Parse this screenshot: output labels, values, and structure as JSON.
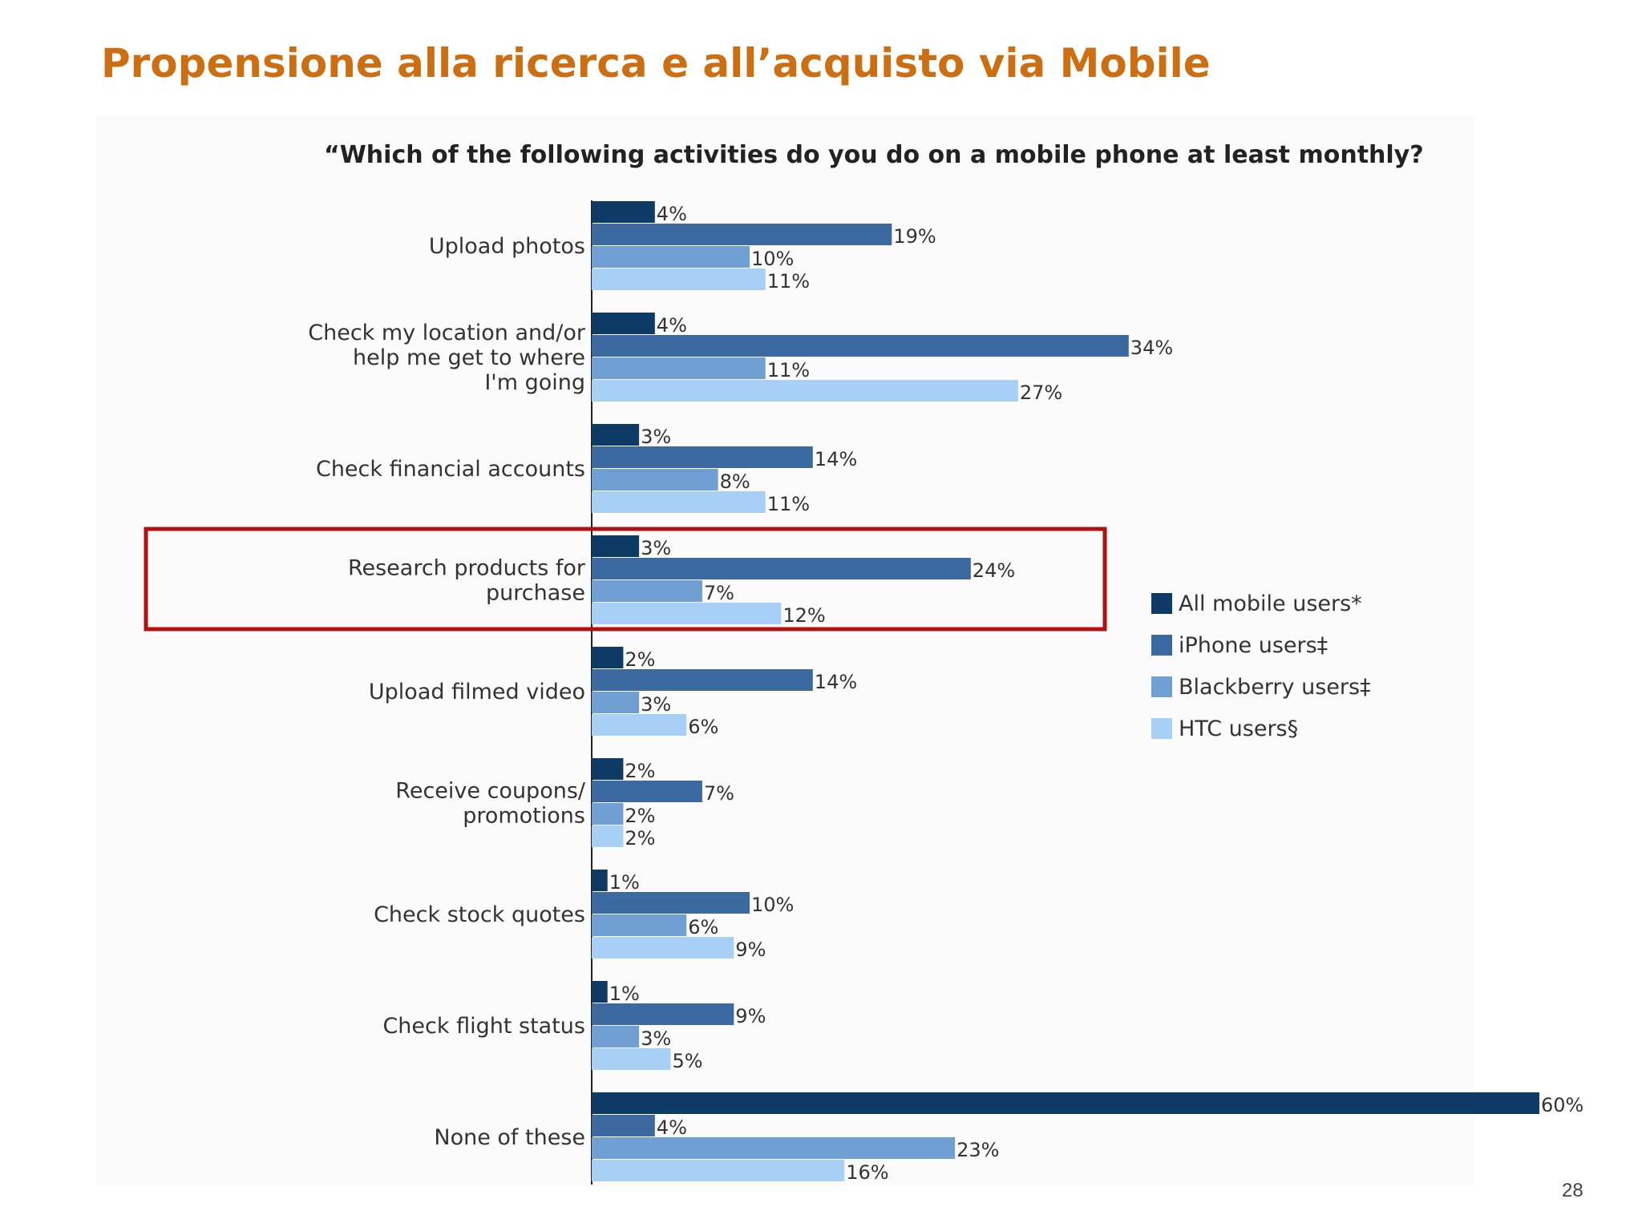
{
  "slide": {
    "title": "Propensione alla ricerca e all’acquisto via Mobile",
    "page_number": "28",
    "title_color": "#cc6f12",
    "highlight_color": "#b01212"
  },
  "chart_data": {
    "type": "bar",
    "orientation": "horizontal",
    "title": "“Which of the following activities do you do on a mobile phone at least monthly?",
    "categories": [
      [
        "Upload photos"
      ],
      [
        "Check my location and/or",
        "help me get to where",
        "I'm going"
      ],
      [
        "Check financial accounts"
      ],
      [
        "Research products for",
        "purchase"
      ],
      [
        "Upload filmed video"
      ],
      [
        "Receive coupons/",
        "promotions"
      ],
      [
        "Check stock quotes"
      ],
      [
        "Check flight status"
      ],
      [
        "None of these"
      ]
    ],
    "series": [
      {
        "name": "All mobile users*",
        "color": "#0e3a66",
        "values": [
          4,
          4,
          3,
          3,
          2,
          2,
          1,
          1,
          60
        ],
        "labels": [
          "4%",
          "4%",
          "3%",
          "3%",
          "2%",
          "2%",
          "1%",
          "1%",
          "60%"
        ]
      },
      {
        "name": "iPhone users‡",
        "color": "#3b69a0",
        "values": [
          19,
          34,
          14,
          24,
          14,
          7,
          10,
          9,
          4
        ],
        "labels": [
          "19%",
          "34%",
          "14%",
          "24%",
          "14%",
          "7%",
          "10%",
          "9%",
          "4%"
        ]
      },
      {
        "name": "Blackberry users‡",
        "color": "#6f9fd3",
        "values": [
          10,
          11,
          8,
          7,
          3,
          2,
          6,
          3,
          23
        ],
        "labels": [
          "10%",
          "11%",
          "8%",
          "7%",
          "3%",
          "2%",
          "6%",
          "3%",
          "23%"
        ]
      },
      {
        "name": "HTC users§",
        "color": "#a8d0f7",
        "values": [
          11,
          27,
          11,
          12,
          6,
          2,
          9,
          5,
          16
        ],
        "labels": [
          "11%",
          "27%",
          "11%",
          "12%",
          "6%",
          "2%",
          "9%",
          "5%",
          "16%"
        ]
      }
    ],
    "highlighted_category": "Research products for purchase",
    "legend_position": "right",
    "grid": false
  }
}
